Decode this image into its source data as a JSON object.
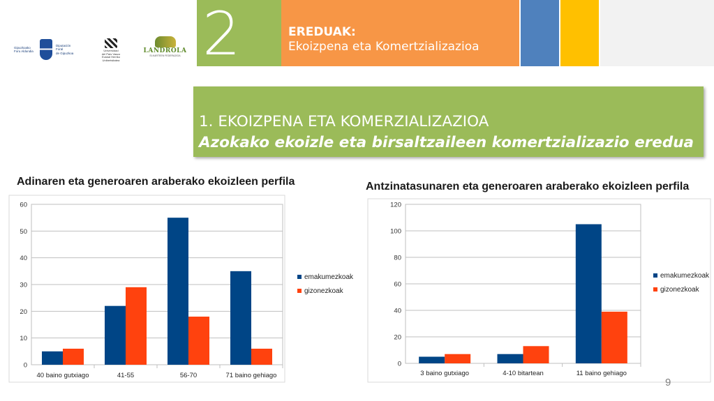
{
  "header": {
    "section_number": "2",
    "label_line1": "EREDUAK:",
    "label_line2": "Ekoizpena eta Komertzializazioa",
    "logos": [
      {
        "name": "gipuzkoa-logo",
        "lines": [
          "Gipuzkoako",
          "Foru Aldundia",
          "Diputación Foral",
          "de Gipuzkoa"
        ]
      },
      {
        "name": "upv-ehu-logo",
        "lines": [
          "Universidad",
          "del País Vasco",
          "Euskal Herriko",
          "Unibertsitatea"
        ]
      },
      {
        "name": "landola-logo",
        "word": "LANDROLA",
        "sub": "ELKARTEEN FEDERAZIOA"
      }
    ],
    "colors": {
      "green": "#9bbb59",
      "orange": "#f79646",
      "blue": "#4f81bd",
      "yellow": "#ffc000"
    }
  },
  "banner": {
    "title": "1. EKOIZPENA ETA KOMERZIALIZAZIOA",
    "subtitle": "Azokako ekoizle eta birsaltzaileen komertzializazio eredua"
  },
  "page_number": "9",
  "chart_data": [
    {
      "type": "bar",
      "title": "Adinaren eta generoaren araberako ekoizleen perfila",
      "categories": [
        "40 baino gutxiago",
        "41-55",
        "56-70",
        "71 baino gehiago"
      ],
      "series": [
        {
          "name": "emakumezkoak",
          "values": [
            5,
            22,
            55,
            35
          ],
          "color": "#004586"
        },
        {
          "name": "gizonezkoak",
          "values": [
            6,
            29,
            18,
            6
          ],
          "color": "#ff420e"
        }
      ],
      "ylim": [
        0,
        60
      ],
      "yticks": [
        0,
        10,
        20,
        30,
        40,
        50,
        60
      ],
      "grid": true,
      "legend": "right"
    },
    {
      "type": "bar",
      "title": "Antzinatasunaren eta generoaren araberako ekoizleen perfila",
      "categories": [
        "3 baino gutxiago",
        "4-10 bitartean",
        "11 baino gehiago"
      ],
      "series": [
        {
          "name": "emakumezkoak",
          "values": [
            5,
            7,
            105
          ],
          "color": "#004586"
        },
        {
          "name": "gizonezkoak",
          "values": [
            7,
            13,
            39
          ],
          "color": "#ff420e"
        }
      ],
      "ylim": [
        0,
        120
      ],
      "yticks": [
        0,
        20,
        40,
        60,
        80,
        100,
        120
      ],
      "grid": true,
      "legend": "right"
    }
  ]
}
